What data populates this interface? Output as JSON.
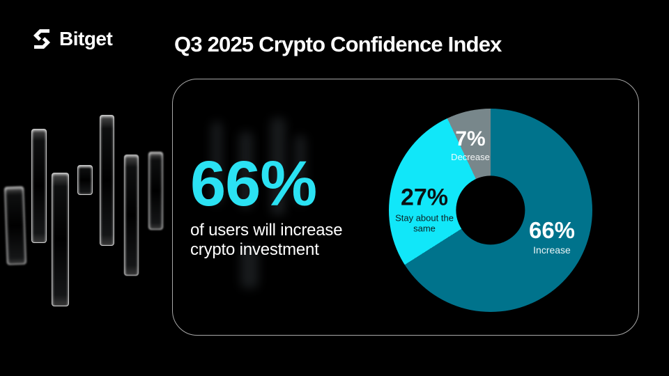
{
  "colors": {
    "background": "#000000",
    "card_border": "#A9A9A9",
    "accent_cyan_text": "#2BE2F3",
    "white": "#FFFFFF"
  },
  "header": {
    "brand": "Bitget",
    "title": "Q3 2025 Crypto Confidence Index"
  },
  "card": {
    "headline_value": "66%",
    "caption_lines": [
      "of users will increase",
      "crypto investment"
    ]
  },
  "chart_data": {
    "type": "pie",
    "subtype": "donut",
    "title": "Q3 2025 Crypto Confidence Index",
    "start_angle_deg": 0,
    "direction": "clockwise",
    "hole_ratio": 0.34,
    "total_pct": 100,
    "segments": [
      {
        "label": "Increase",
        "value_pct": 66,
        "display_value": "66%",
        "color": "#00738C",
        "label_color": "#FFFFFF"
      },
      {
        "label": "Stay about the same",
        "value_pct": 27,
        "display_value": "27%",
        "color": "#11E7F9",
        "label_color": "#0A1214"
      },
      {
        "label": "Decrease",
        "value_pct": 7,
        "display_value": "7%",
        "color": "#78878B",
        "label_color": "#FFFFFF"
      }
    ],
    "legend": "labels-on-chart"
  }
}
